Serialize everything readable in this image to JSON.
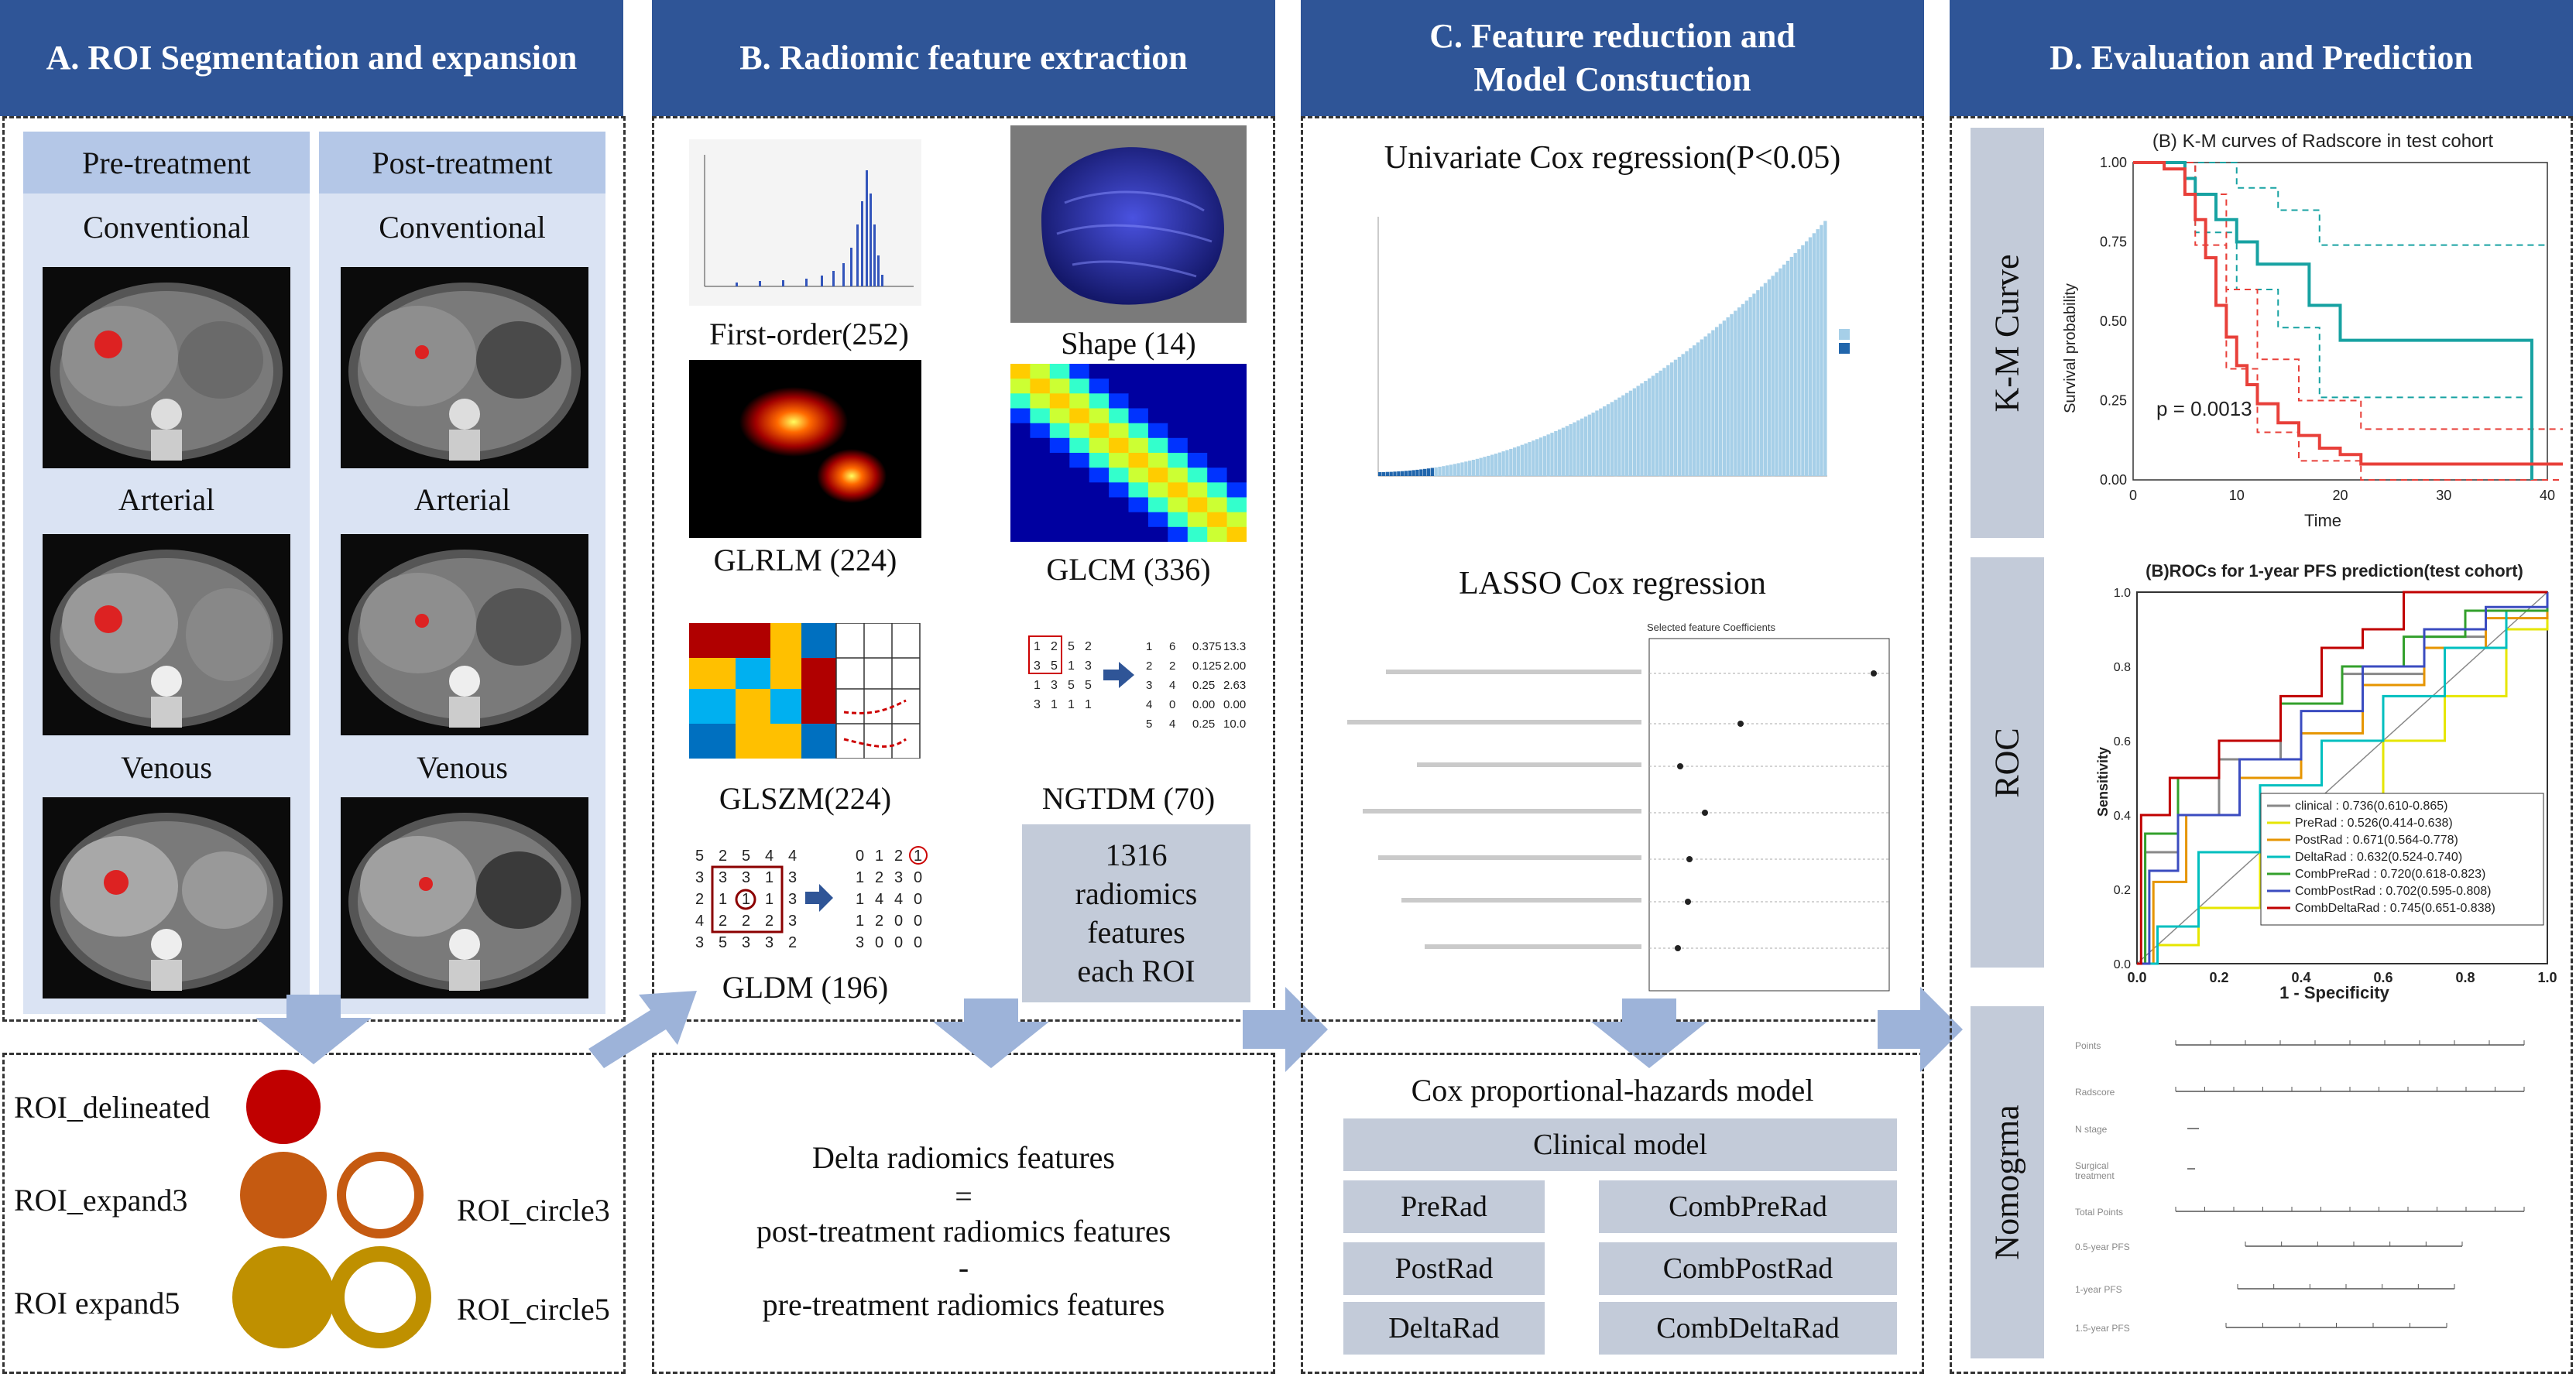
{
  "panelA": {
    "title": "A. ROI Segmentation and expansion",
    "pre_label": "Pre-treatment",
    "post_label": "Post-treatment",
    "phases": [
      "Conventional",
      "Arterial",
      "Venous"
    ],
    "roi": {
      "delineated": "ROI_delineated",
      "expand3": "ROI_expand3",
      "expand5": "ROI expand5",
      "circle3": "ROI_circle3",
      "circle5": "ROI_circle5"
    },
    "colors": {
      "delineated": "#c00000",
      "expand3": "#c55a11",
      "expand5": "#bf9000"
    }
  },
  "panelB": {
    "title": "B. Radiomic feature extraction",
    "first_order": "First-order(252)",
    "shape": "Shape (14)",
    "glrlm": "GLRLM (224)",
    "glcm": "GLCM (336)",
    "glszm": "GLSZM(224)",
    "ngtdm": "NGTDM (70)",
    "gldm": "GLDM (196)",
    "total_l1": "1316",
    "total_l2": "radiomics",
    "total_l3": "features",
    "total_l4": "each ROI",
    "delta_title": "Delta radiomics features",
    "eq": "=",
    "post": "post-treatment radiomics features",
    "minus": "-",
    "pre": "pre-treatment radiomics features"
  },
  "panelC": {
    "title_l1": "C. Feature reduction and",
    "title_l2": "Model Constuction",
    "univariate": "Univariate Cox regression(P<0.05)",
    "lasso": "LASSO Cox regression",
    "lasso_chart_title": "Selected feature Coefficients",
    "cox_title": "Cox proportional-hazards model",
    "clinical": "Clinical model",
    "models_left": [
      "PreRad",
      "PostRad",
      "DeltaRad"
    ],
    "models_right": [
      "CombPreRad",
      "CombPostRad",
      "CombDeltaRad"
    ]
  },
  "panelD": {
    "title": "D. Evaluation and Prediction",
    "km_tab": "K-M Curve",
    "roc_tab": "ROC",
    "nomo_tab": "Nomogrma",
    "km_title": "(B) K-M curves of Radscore in test cohort",
    "km_xlabel": "Time",
    "km_ylabel": "Survival probability",
    "km_p": "p = 0.0013",
    "roc_title": "(B)ROCs for 1-year PFS prediction(test cohort)",
    "roc_xlabel": "1 - Specificity",
    "roc_ylabel": "Sensitivity",
    "roc_legend": [
      {
        "label": "clinical : 0.736(0.610-0.865)",
        "color": "#888888"
      },
      {
        "label": "PreRad : 0.526(0.414-0.638)",
        "color": "#e6e600"
      },
      {
        "label": "PostRad : 0.671(0.564-0.778)",
        "color": "#e69500"
      },
      {
        "label": "DeltaRad : 0.632(0.524-0.740)",
        "color": "#00bfbf"
      },
      {
        "label": "CombPreRad : 0.720(0.618-0.823)",
        "color": "#33a02c"
      },
      {
        "label": "CombPostRad : 0.702(0.595-0.808)",
        "color": "#3b4cc0"
      },
      {
        "label": "CombDeltaRad : 0.745(0.651-0.838)",
        "color": "#c00000"
      }
    ]
  },
  "charts": {
    "km": {
      "type": "line",
      "xlim": [
        0,
        40
      ],
      "ylim": [
        0,
        1
      ],
      "xticks": [
        "0",
        "10",
        "20",
        "30",
        "40"
      ],
      "yticks": [
        "0.00",
        "0.25",
        "0.50",
        "0.75",
        "1.00"
      ],
      "series": [
        {
          "color": "#17a2a2",
          "points": [
            [
              0,
              1
            ],
            [
              3,
              1
            ],
            [
              5,
              0.95
            ],
            [
              6,
              0.9
            ],
            [
              8,
              0.82
            ],
            [
              10,
              0.75
            ],
            [
              12,
              0.68
            ],
            [
              16,
              0.68
            ],
            [
              17,
              0.55
            ],
            [
              20,
              0.44
            ],
            [
              38,
              0.44
            ],
            [
              38.5,
              0
            ]
          ]
        },
        {
          "color": "#e8403a",
          "points": [
            [
              0,
              1
            ],
            [
              3,
              0.98
            ],
            [
              5,
              0.9
            ],
            [
              6,
              0.82
            ],
            [
              7,
              0.7
            ],
            [
              8,
              0.55
            ],
            [
              9,
              0.45
            ],
            [
              10,
              0.36
            ],
            [
              11,
              0.3
            ],
            [
              12,
              0.24
            ],
            [
              14,
              0.18
            ],
            [
              16,
              0.14
            ],
            [
              18,
              0.1
            ],
            [
              20,
              0.08
            ],
            [
              22,
              0.05
            ],
            [
              42,
              0.05
            ]
          ]
        }
      ],
      "bands": [
        {
          "color": "#17a2a2",
          "upper": [
            [
              0,
              1
            ],
            [
              6,
              1
            ],
            [
              10,
              0.92
            ],
            [
              14,
              0.85
            ],
            [
              18,
              0.74
            ],
            [
              40,
              0.74
            ]
          ],
          "lower": [
            [
              0,
              1
            ],
            [
              6,
              0.78
            ],
            [
              10,
              0.6
            ],
            [
              14,
              0.48
            ],
            [
              18,
              0.26
            ],
            [
              38,
              0.26
            ]
          ]
        },
        {
          "color": "#e8403a",
          "upper": [
            [
              0,
              1
            ],
            [
              6,
              0.9
            ],
            [
              9,
              0.6
            ],
            [
              12,
              0.38
            ],
            [
              16,
              0.25
            ],
            [
              22,
              0.16
            ],
            [
              42,
              0.16
            ]
          ],
          "lower": [
            [
              0,
              1
            ],
            [
              6,
              0.74
            ],
            [
              9,
              0.35
            ],
            [
              12,
              0.15
            ],
            [
              16,
              0.06
            ],
            [
              22,
              0
            ],
            [
              42,
              0
            ]
          ]
        }
      ]
    },
    "roc": {
      "type": "line",
      "xlim": [
        0,
        1
      ],
      "ylim": [
        0,
        1
      ],
      "xticks": [
        "0.0",
        "0.2",
        "0.4",
        "0.6",
        "0.8",
        "1.0"
      ],
      "yticks": [
        "0.0",
        "0.2",
        "0.4",
        "0.6",
        "0.8",
        "1.0"
      ],
      "series": [
        {
          "color": "#888888",
          "points": [
            [
              0,
              0
            ],
            [
              0.02,
              0.3
            ],
            [
              0.1,
              0.4
            ],
            [
              0.2,
              0.55
            ],
            [
              0.35,
              0.7
            ],
            [
              0.5,
              0.78
            ],
            [
              0.7,
              0.88
            ],
            [
              0.85,
              0.95
            ],
            [
              1,
              1
            ]
          ]
        },
        {
          "color": "#e6e600",
          "points": [
            [
              0,
              0
            ],
            [
              0.05,
              0.05
            ],
            [
              0.15,
              0.15
            ],
            [
              0.3,
              0.3
            ],
            [
              0.45,
              0.42
            ],
            [
              0.6,
              0.6
            ],
            [
              0.75,
              0.72
            ],
            [
              0.9,
              0.9
            ],
            [
              1,
              1
            ]
          ]
        },
        {
          "color": "#e69500",
          "points": [
            [
              0,
              0
            ],
            [
              0.04,
              0.22
            ],
            [
              0.12,
              0.4
            ],
            [
              0.25,
              0.5
            ],
            [
              0.4,
              0.62
            ],
            [
              0.55,
              0.75
            ],
            [
              0.7,
              0.85
            ],
            [
              0.85,
              0.93
            ],
            [
              1,
              1
            ]
          ]
        },
        {
          "color": "#00bfbf",
          "points": [
            [
              0,
              0
            ],
            [
              0.05,
              0.1
            ],
            [
              0.15,
              0.3
            ],
            [
              0.3,
              0.48
            ],
            [
              0.45,
              0.6
            ],
            [
              0.6,
              0.72
            ],
            [
              0.75,
              0.85
            ],
            [
              0.9,
              0.95
            ],
            [
              1,
              1
            ]
          ]
        },
        {
          "color": "#33a02c",
          "points": [
            [
              0,
              0
            ],
            [
              0.02,
              0.35
            ],
            [
              0.1,
              0.5
            ],
            [
              0.2,
              0.6
            ],
            [
              0.35,
              0.7
            ],
            [
              0.5,
              0.8
            ],
            [
              0.65,
              0.88
            ],
            [
              0.8,
              0.95
            ],
            [
              1,
              1
            ]
          ]
        },
        {
          "color": "#3b4cc0",
          "points": [
            [
              0,
              0
            ],
            [
              0.03,
              0.25
            ],
            [
              0.1,
              0.4
            ],
            [
              0.25,
              0.55
            ],
            [
              0.4,
              0.68
            ],
            [
              0.55,
              0.8
            ],
            [
              0.7,
              0.9
            ],
            [
              0.85,
              0.96
            ],
            [
              1,
              1
            ]
          ]
        },
        {
          "color": "#c00000",
          "points": [
            [
              0,
              0
            ],
            [
              0.01,
              0.4
            ],
            [
              0.08,
              0.5
            ],
            [
              0.2,
              0.6
            ],
            [
              0.35,
              0.72
            ],
            [
              0.45,
              0.85
            ],
            [
              0.55,
              0.9
            ],
            [
              0.65,
              1
            ],
            [
              1,
              1
            ]
          ]
        }
      ]
    }
  }
}
